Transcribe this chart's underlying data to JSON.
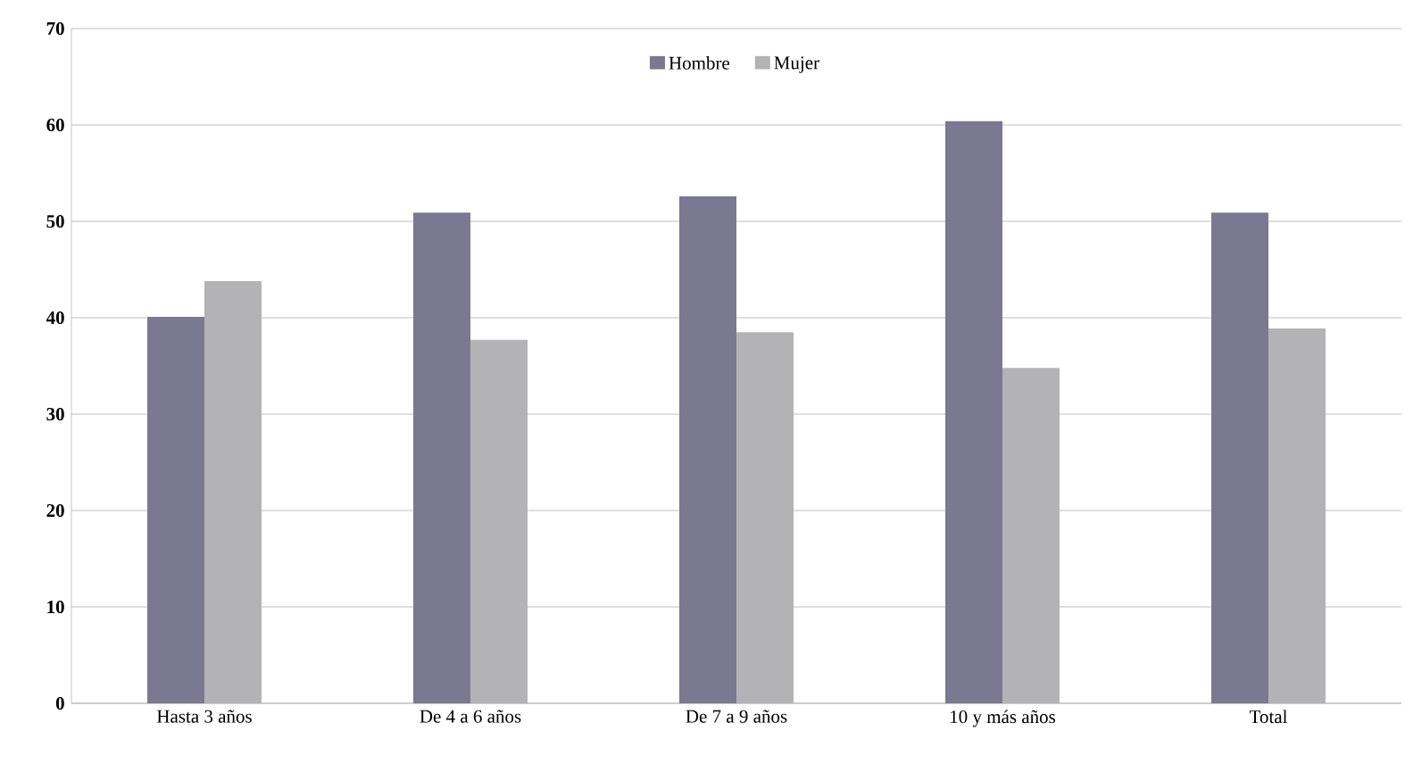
{
  "chart_data": {
    "type": "bar",
    "categories": [
      "Hasta 3 años",
      "De 4 a 6 años",
      "De 7 a 9 años",
      "10 y más años",
      "Total"
    ],
    "series": [
      {
        "name": "Hombre",
        "color": "#7b7891",
        "values": [
          40.1,
          50.9,
          52.6,
          60.4,
          50.9
        ]
      },
      {
        "name": "Mujer",
        "color": "#b3b3b6",
        "values": [
          43.8,
          37.7,
          38.5,
          34.8,
          38.9
        ]
      }
    ],
    "ylim": [
      0,
      70
    ],
    "yticks": [
      0,
      10,
      20,
      30,
      40,
      50,
      60,
      70
    ],
    "grid": "y",
    "legend": "top"
  }
}
